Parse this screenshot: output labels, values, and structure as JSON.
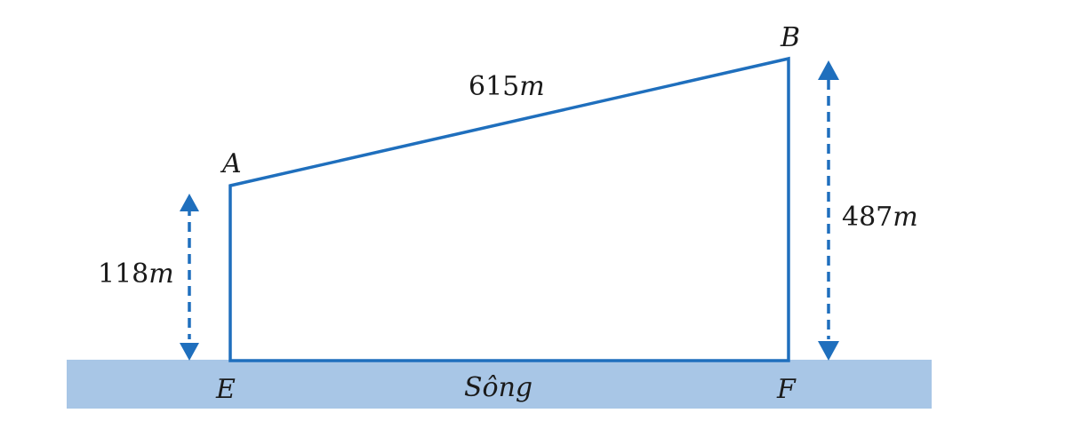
{
  "diagram": {
    "points": {
      "A": "A",
      "B": "B",
      "E": "E",
      "F": "F"
    },
    "measurements": {
      "ab": {
        "number": "615",
        "unit": "m"
      },
      "ae": {
        "number": "118",
        "unit": "m"
      },
      "bf": {
        "number": "487",
        "unit": "m"
      }
    },
    "river_label": "Sông"
  },
  "colors": {
    "outline": "#1f6fbd",
    "arrow": "#1f6fbd",
    "river": "#a8c6e6",
    "text": "#1a1a1a"
  }
}
